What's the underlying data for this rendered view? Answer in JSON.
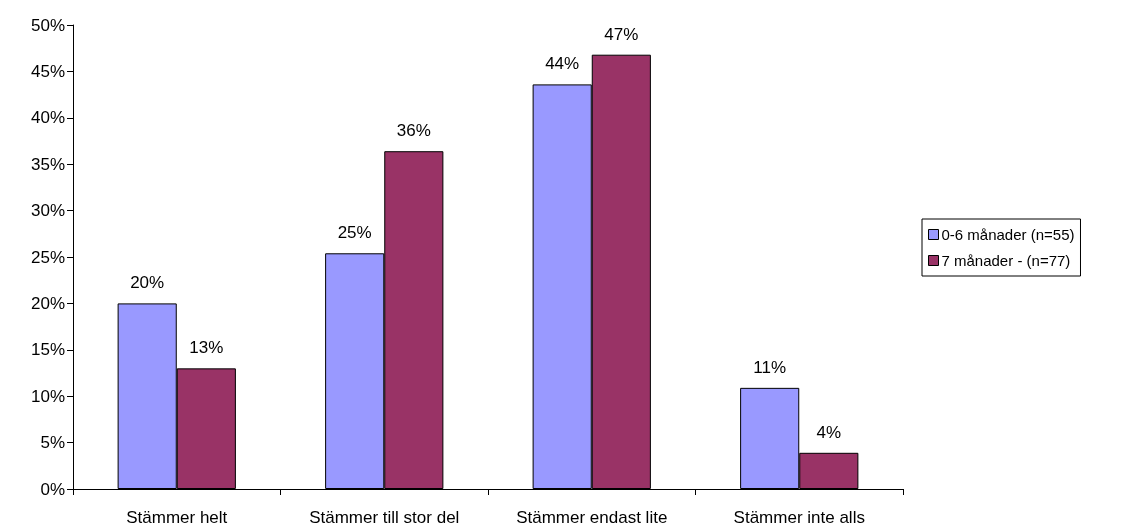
{
  "chart_data": {
    "type": "bar",
    "categories": [
      "Stämmer helt",
      "Stämmer till stor del",
      "Stämmer endast lite",
      "Stämmer inte alls"
    ],
    "series": [
      {
        "name": "0-6 månader (n=55)",
        "color": "#9999ff",
        "values": [
          20,
          25.4,
          43.6,
          10.9
        ],
        "value_labels": [
          "20%",
          "25%",
          "44%",
          "11%"
        ]
      },
      {
        "name": "7 månader - (n=77)",
        "color": "#993366",
        "values": [
          13,
          36.4,
          46.8,
          3.9
        ],
        "value_labels": [
          "13%",
          "36%",
          "47%",
          "4%"
        ]
      }
    ],
    "ylim": [
      0,
      50
    ],
    "yticks": [
      {
        "value": 0,
        "label": "0%"
      },
      {
        "value": 5,
        "label": "5%"
      },
      {
        "value": 10,
        "label": "10%"
      },
      {
        "value": 15,
        "label": "15%"
      },
      {
        "value": 20,
        "label": "20%"
      },
      {
        "value": 25,
        "label": "25%"
      },
      {
        "value": 30,
        "label": "30%"
      },
      {
        "value": 35,
        "label": "35%"
      },
      {
        "value": 40,
        "label": "40%"
      },
      {
        "value": 45,
        "label": "45%"
      },
      {
        "value": 50,
        "label": "50%"
      }
    ],
    "grid": false,
    "legend": "right"
  }
}
